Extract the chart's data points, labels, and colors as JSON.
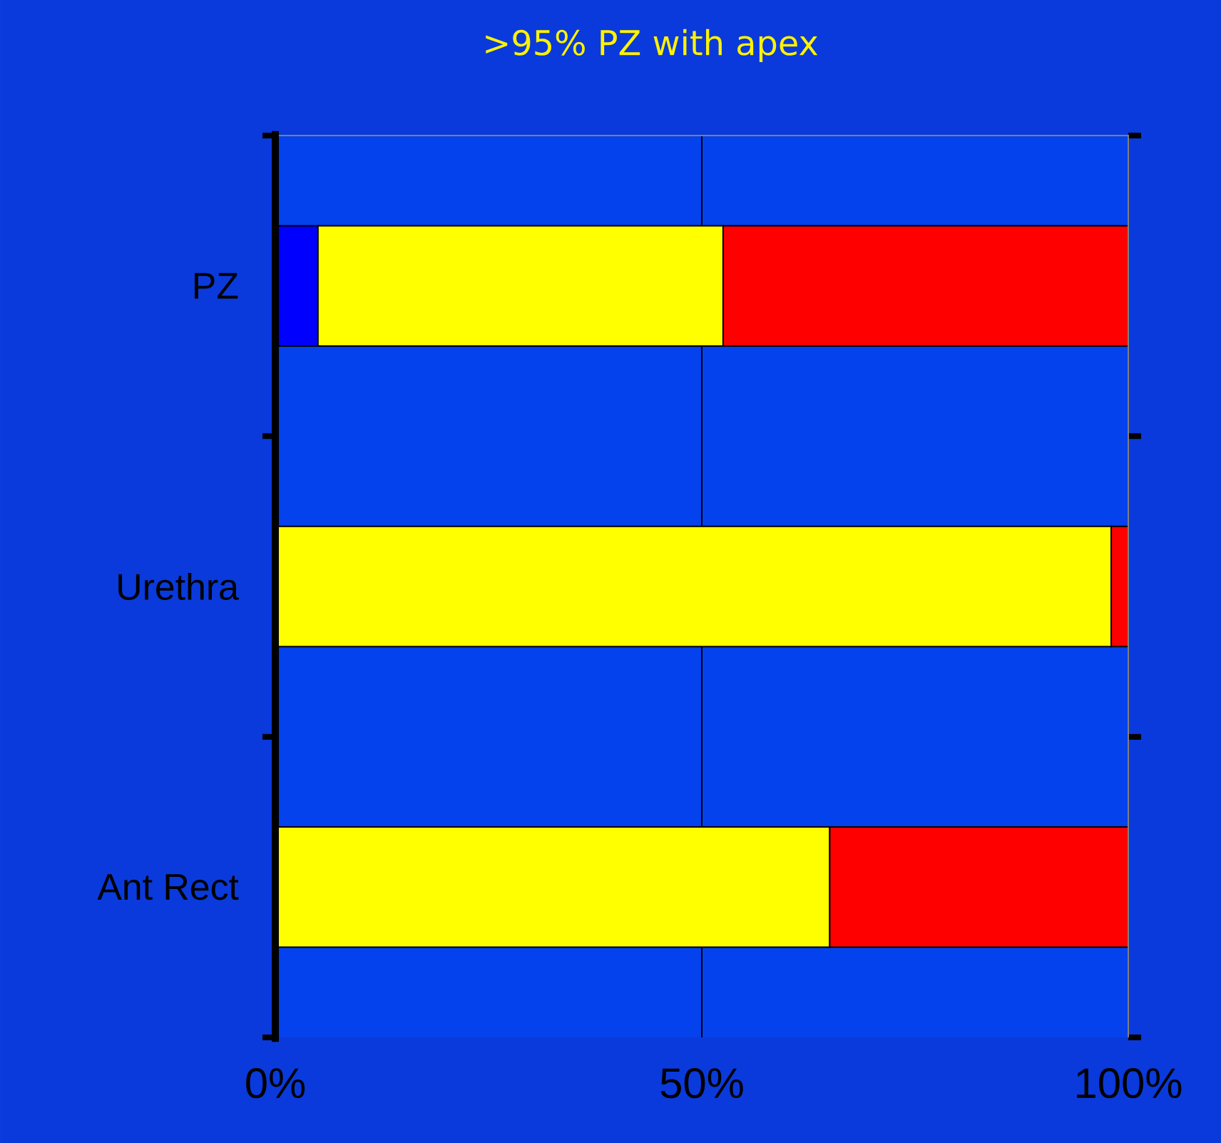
{
  "chart_data": {
    "type": "bar",
    "title": ">95% PZ with apex",
    "orientation": "horizontal",
    "stacked": true,
    "categories": [
      "PZ",
      "Urethra",
      "Ant Rect"
    ],
    "series": [
      {
        "color": "#0000ff",
        "values": [
          5,
          null,
          null
        ]
      },
      {
        "color": "#ffff00",
        "values": [
          47.5,
          98,
          65
        ]
      },
      {
        "color": "#ff0000",
        "values": [
          47.5,
          2,
          35
        ]
      }
    ],
    "xlim": [
      0,
      100
    ],
    "xticks": [
      {
        "value": 0,
        "label": "0%"
      },
      {
        "value": 50,
        "label": "50%"
      },
      {
        "value": 100,
        "label": "100%"
      }
    ],
    "grid": "x"
  }
}
